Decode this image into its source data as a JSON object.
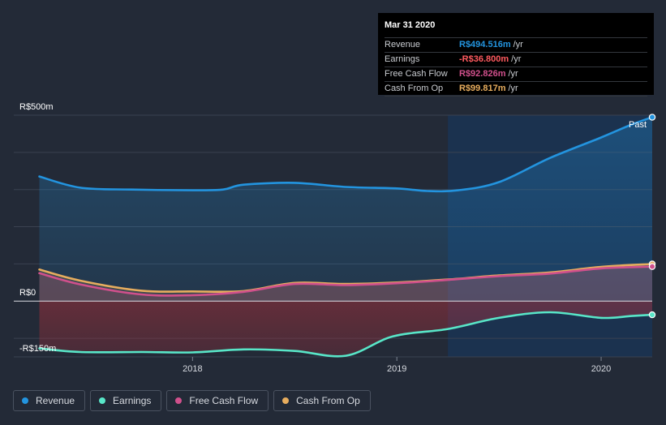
{
  "chart_data": {
    "type": "area",
    "currency": "R$",
    "x_ticks": [
      2018,
      2019,
      2020
    ],
    "y_ticks": [
      {
        "value": 500,
        "label": "R$500m"
      },
      {
        "value": 0,
        "label": "R$0"
      },
      {
        "value": -150,
        "label": "-R$150m"
      }
    ],
    "xlim": [
      2017.125,
      2020.25
    ],
    "ylim": [
      -150,
      500
    ],
    "past_label": "Past",
    "past_start": 2019.25,
    "series": [
      {
        "name": "Revenue",
        "color": "#2394df",
        "points": [
          [
            2017.25,
            335
          ],
          [
            2017.45,
            305
          ],
          [
            2017.7,
            300
          ],
          [
            2018.0,
            298
          ],
          [
            2018.15,
            300
          ],
          [
            2018.25,
            313
          ],
          [
            2018.5,
            318
          ],
          [
            2018.75,
            307
          ],
          [
            2019.0,
            303
          ],
          [
            2019.15,
            296
          ],
          [
            2019.3,
            298
          ],
          [
            2019.5,
            320
          ],
          [
            2019.75,
            385
          ],
          [
            2020.0,
            440
          ],
          [
            2020.15,
            475
          ],
          [
            2020.25,
            494.5
          ]
        ]
      },
      {
        "name": "Earnings",
        "color": "#58e6c8",
        "points": [
          [
            2017.25,
            -127
          ],
          [
            2017.45,
            -137
          ],
          [
            2017.75,
            -137
          ],
          [
            2018.0,
            -138
          ],
          [
            2018.25,
            -130
          ],
          [
            2018.5,
            -134
          ],
          [
            2018.75,
            -147
          ],
          [
            2018.98,
            -95
          ],
          [
            2019.25,
            -75
          ],
          [
            2019.5,
            -45
          ],
          [
            2019.75,
            -30
          ],
          [
            2020.0,
            -45
          ],
          [
            2020.15,
            -40
          ],
          [
            2020.25,
            -36.8
          ]
        ]
      },
      {
        "name": "Free Cash Flow",
        "color": "#d0508c",
        "points": [
          [
            2017.25,
            75
          ],
          [
            2017.45,
            45
          ],
          [
            2017.75,
            18
          ],
          [
            2018.0,
            16
          ],
          [
            2018.25,
            25
          ],
          [
            2018.5,
            46
          ],
          [
            2018.75,
            43
          ],
          [
            2019.0,
            48
          ],
          [
            2019.25,
            57
          ],
          [
            2019.5,
            67
          ],
          [
            2019.75,
            74
          ],
          [
            2020.0,
            88
          ],
          [
            2020.25,
            92.8
          ]
        ]
      },
      {
        "name": "Cash From Op",
        "color": "#e7ad5e",
        "points": [
          [
            2017.25,
            85
          ],
          [
            2017.45,
            55
          ],
          [
            2017.75,
            28
          ],
          [
            2018.0,
            26
          ],
          [
            2018.25,
            27
          ],
          [
            2018.5,
            49
          ],
          [
            2018.75,
            46
          ],
          [
            2019.0,
            50
          ],
          [
            2019.25,
            58
          ],
          [
            2019.5,
            69
          ],
          [
            2019.75,
            77
          ],
          [
            2020.0,
            92
          ],
          [
            2020.25,
            99.8
          ]
        ]
      }
    ]
  },
  "tooltip": {
    "date": "Mar 31 2020",
    "rows": [
      {
        "label": "Revenue",
        "value": "R$494.516m",
        "unit": "/yr",
        "color": "#2394df"
      },
      {
        "label": "Earnings",
        "value": "-R$36.800m",
        "unit": "/yr",
        "color": "#ff5a5f"
      },
      {
        "label": "Free Cash Flow",
        "value": "R$92.826m",
        "unit": "/yr",
        "color": "#d0508c"
      },
      {
        "label": "Cash From Op",
        "value": "R$99.817m",
        "unit": "/yr",
        "color": "#e7ad5e"
      }
    ]
  },
  "legend": [
    {
      "label": "Revenue",
      "color": "#2394df"
    },
    {
      "label": "Earnings",
      "color": "#58e6c8"
    },
    {
      "label": "Free Cash Flow",
      "color": "#d0508c"
    },
    {
      "label": "Cash From Op",
      "color": "#e7ad5e"
    }
  ]
}
